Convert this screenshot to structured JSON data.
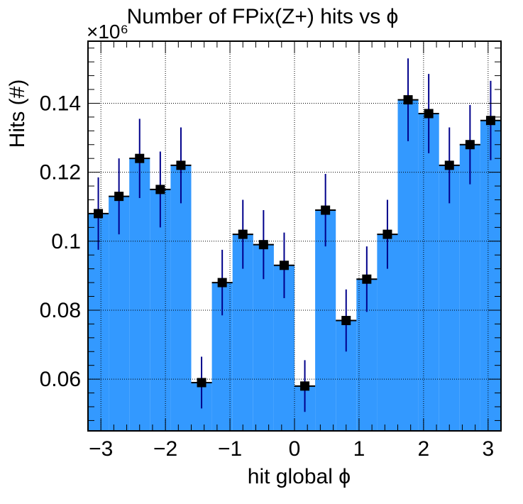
{
  "chart_data": {
    "type": "bar",
    "title": "Number of FPix(Z+) hits vs ϕ",
    "xlabel": "hit global ϕ",
    "ylabel": "Hits (#)",
    "y_multiplier_label": "×10⁶",
    "xlim": [
      -3.2,
      3.2
    ],
    "ylim": [
      0.045,
      0.158
    ],
    "x_ticks": [
      -3,
      -2,
      -1,
      0,
      1,
      2,
      3
    ],
    "x_tick_labels": [
      "−3",
      "−2",
      "−1",
      "0",
      "1",
      "2",
      "3"
    ],
    "y_ticks": [
      0.06,
      0.08,
      0.1,
      0.12,
      0.14
    ],
    "y_tick_labels": [
      "0.06",
      "0.08",
      "0.1",
      "0.12",
      "0.14"
    ],
    "grid": true,
    "bin_edges": [
      -3.2,
      -2.88,
      -2.56,
      -2.24,
      -1.92,
      -1.6,
      -1.28,
      -0.96,
      -0.64,
      -0.32,
      0.0,
      0.32,
      0.64,
      0.96,
      1.28,
      1.6,
      1.92,
      2.24,
      2.56,
      2.88,
      3.2
    ],
    "series": [
      {
        "values": [
          0.108,
          0.113,
          0.124,
          0.115,
          0.122,
          0.059,
          0.088,
          0.102,
          0.099,
          0.093,
          0.058,
          0.109,
          0.077,
          0.089,
          0.102,
          0.141,
          0.137,
          0.122,
          0.128,
          0.135
        ],
        "errors": [
          0.0105,
          0.011,
          0.0115,
          0.011,
          0.011,
          0.0075,
          0.0095,
          0.01,
          0.01,
          0.0095,
          0.0075,
          0.0105,
          0.009,
          0.0095,
          0.01,
          0.012,
          0.0115,
          0.011,
          0.0115,
          0.0115
        ]
      }
    ],
    "colors": {
      "fill": "#3399ff",
      "marker": "#000000",
      "error_bar": "#00008b",
      "frame": "#000000",
      "grid": "#000000"
    }
  }
}
